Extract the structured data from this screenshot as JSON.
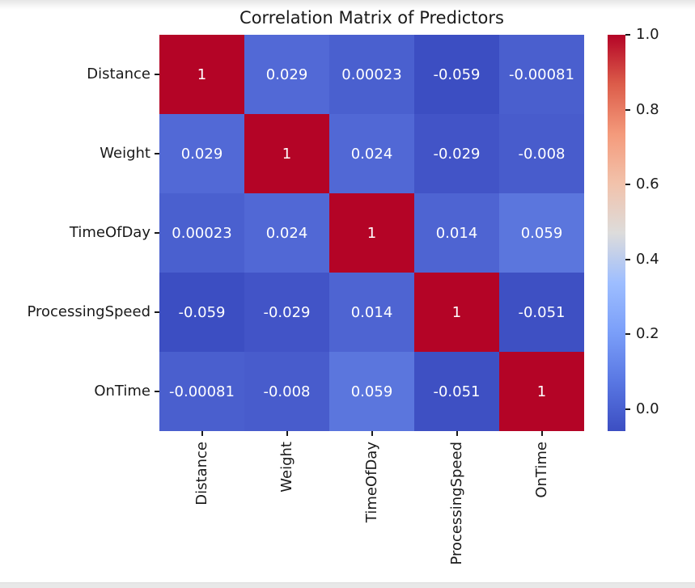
{
  "page": {
    "background": "#ffffff",
    "top_fade_color": "#e6e6e6",
    "bottom_strip_color": "#e8e8e8"
  },
  "chart_data": {
    "type": "heatmap",
    "title": "Correlation Matrix of Predictors",
    "categories": [
      "Distance",
      "Weight",
      "TimeOfDay",
      "ProcessingSpeed",
      "OnTime"
    ],
    "matrix": [
      [
        1,
        0.029,
        0.00023,
        -0.059,
        -0.00081
      ],
      [
        0.029,
        1,
        0.024,
        -0.029,
        -0.008
      ],
      [
        0.00023,
        0.024,
        1,
        0.014,
        0.059
      ],
      [
        -0.059,
        -0.029,
        0.014,
        1,
        -0.051
      ],
      [
        -0.00081,
        -0.008,
        0.059,
        -0.051,
        1
      ]
    ],
    "cell_labels": [
      [
        "1",
        "0.029",
        "0.00023",
        "-0.059",
        "-0.00081"
      ],
      [
        "0.029",
        "1",
        "0.024",
        "-0.029",
        "-0.008"
      ],
      [
        "0.00023",
        "0.024",
        "1",
        "0.014",
        "0.059"
      ],
      [
        "-0.059",
        "-0.029",
        "0.014",
        "1",
        "-0.051"
      ],
      [
        "-0.00081",
        "-0.008",
        "0.059",
        "-0.051",
        "1"
      ]
    ],
    "cell_colors": [
      [
        "#b40426",
        "#5269d6",
        "#4a60cf",
        "#3c4ec2",
        "#4a5fce"
      ],
      [
        "#5269d6",
        "#b40426",
        "#5168d5",
        "#4254c7",
        "#485ccc"
      ],
      [
        "#4a60cf",
        "#5168d5",
        "#b40426",
        "#4e64d2",
        "#5b76dd"
      ],
      [
        "#3c4ec2",
        "#4254c7",
        "#4e64d2",
        "#b40426",
        "#3e50c3"
      ],
      [
        "#4a5fce",
        "#485ccc",
        "#5b76dd",
        "#3e50c3",
        "#b40426"
      ]
    ],
    "annotation_text_color": "#ffffff",
    "axis_text_color": "#1a1a1a",
    "colormap": "coolwarm",
    "vmin": -0.059,
    "vmax": 1.0,
    "grid": false,
    "colorbar": {
      "position": "right",
      "tick_labels": [
        "1.0",
        "0.8",
        "0.6",
        "0.4",
        "0.2",
        "0.0"
      ],
      "tick_values": [
        1.0,
        0.8,
        0.6,
        0.4,
        0.2,
        0.0
      ],
      "gradient_stops": [
        {
          "t": 0.0,
          "color": "#3c4ec2"
        },
        {
          "t": 0.125,
          "color": "#5977e3"
        },
        {
          "t": 0.25,
          "color": "#7b9ff9"
        },
        {
          "t": 0.375,
          "color": "#9ebeff"
        },
        {
          "t": 0.5,
          "color": "#dddcdb"
        },
        {
          "t": 0.625,
          "color": "#f2c2ab"
        },
        {
          "t": 0.75,
          "color": "#f49a7b"
        },
        {
          "t": 0.875,
          "color": "#dc5d4a"
        },
        {
          "t": 1.0,
          "color": "#b40426"
        }
      ]
    }
  }
}
